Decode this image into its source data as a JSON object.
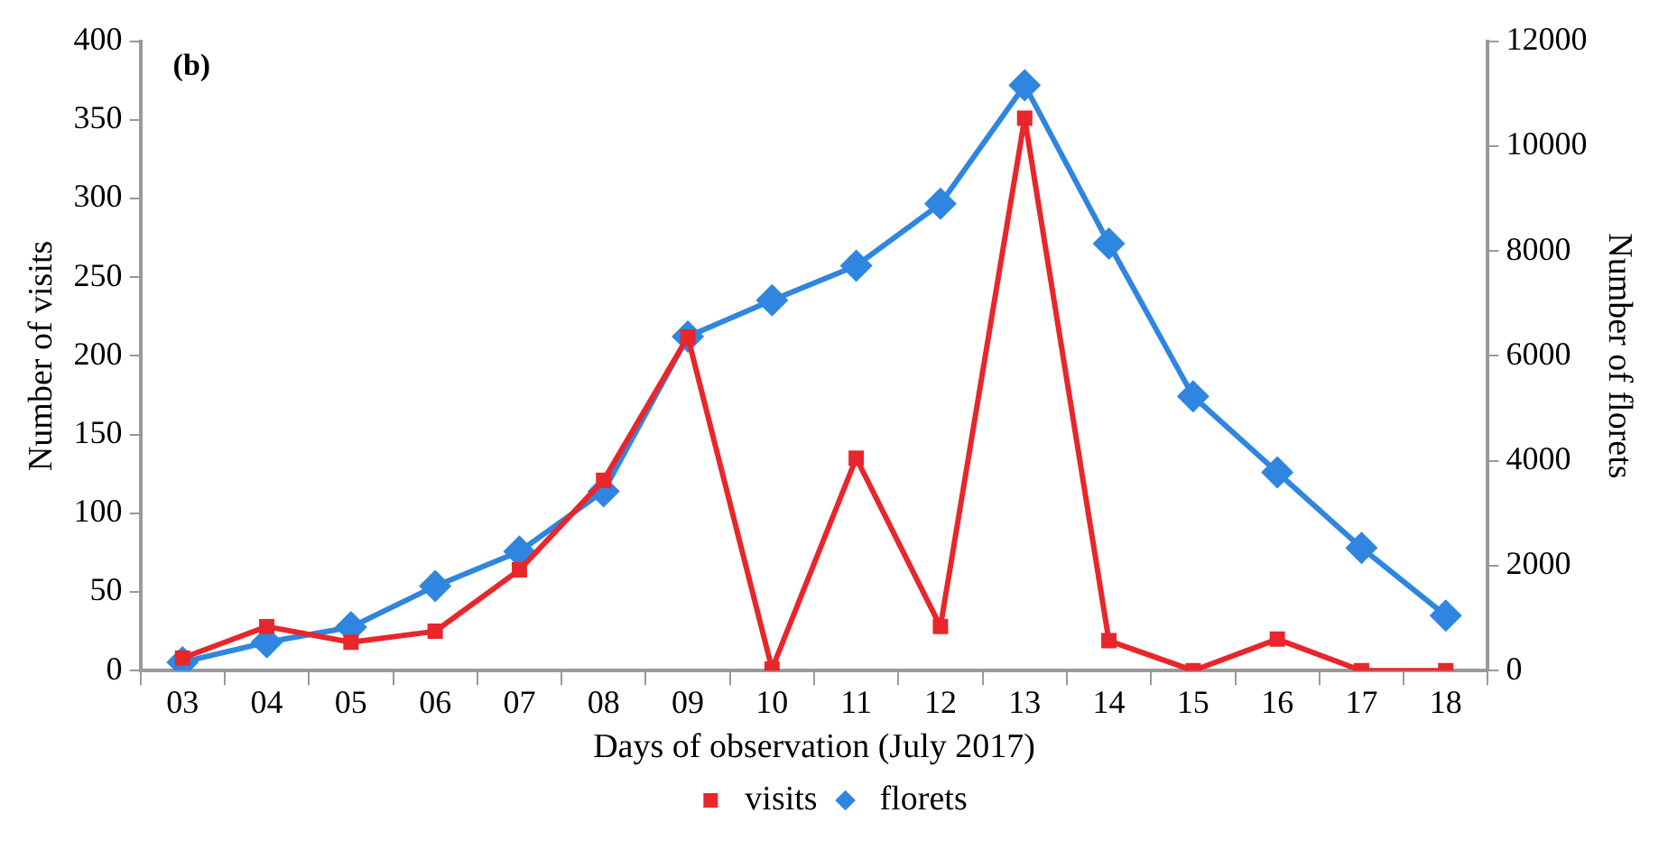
{
  "chart_data": {
    "type": "line",
    "title": "(b)",
    "xlabel": "Days of observation (July 2017)",
    "ylabel": "Number of visits",
    "y2label": "Number of florets",
    "categories": [
      "03",
      "04",
      "05",
      "06",
      "07",
      "08",
      "09",
      "10",
      "11",
      "12",
      "13",
      "14",
      "15",
      "16",
      "17",
      "18"
    ],
    "series": [
      {
        "name": "visits",
        "color": "#e8262b",
        "marker": "square",
        "values": [
          8,
          28,
          18,
          25,
          64,
          121,
          212,
          1,
          135,
          28,
          351,
          19,
          0,
          20,
          0,
          0
        ]
      },
      {
        "name": "florets",
        "color": "#2f86e0",
        "marker": "diamond",
        "axis": "y2",
        "values": [
          160,
          540,
          830,
          1610,
          2270,
          3420,
          6370,
          7060,
          7720,
          8900,
          11160,
          8140,
          5230,
          3780,
          2340,
          1050
        ]
      }
    ],
    "ylim": [
      0,
      400
    ],
    "yticks": [
      0,
      50,
      100,
      150,
      200,
      250,
      300,
      350,
      400
    ],
    "y2lim": [
      0,
      12000
    ],
    "y2ticks": [
      0,
      2000,
      4000,
      6000,
      8000,
      10000,
      12000
    ],
    "grid": false,
    "legend": "bottom"
  }
}
